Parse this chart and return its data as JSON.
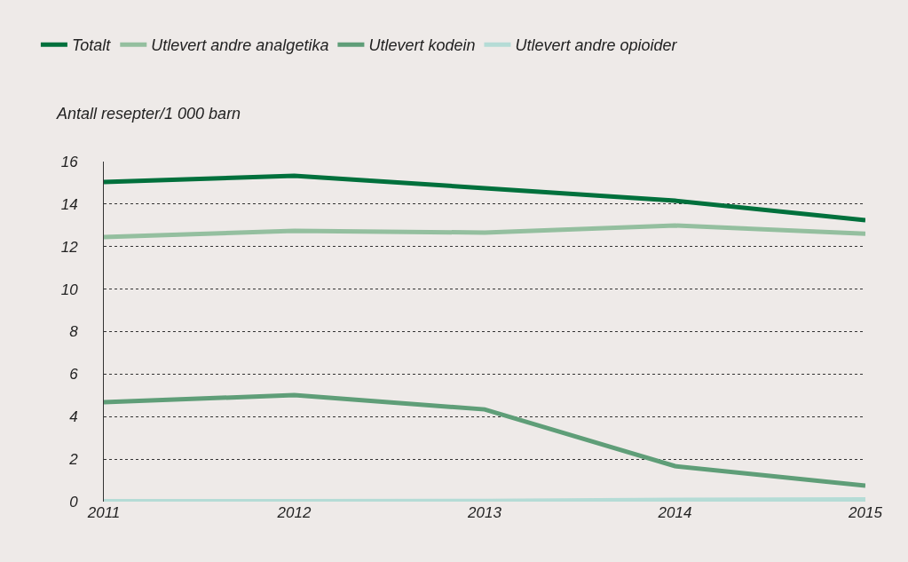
{
  "chart_data": {
    "type": "line",
    "ylabel": "Antall resepter/1 000 barn",
    "x": [
      2011,
      2012,
      2013,
      2014,
      2015
    ],
    "series": [
      {
        "name": "Totalt",
        "color": "#00703c",
        "values": [
          15.04,
          15.33,
          14.75,
          14.16,
          13.24
        ]
      },
      {
        "name": "Utlevert andre analgetika",
        "color": "#94bf9f",
        "values": [
          12.45,
          12.74,
          12.66,
          12.99,
          12.61
        ]
      },
      {
        "name": "Utlevert kodein",
        "color": "#5f9e78",
        "values": [
          4.68,
          5.01,
          4.34,
          1.67,
          0.75
        ]
      },
      {
        "name": "Utlevert andre opioider",
        "color": "#b5dcd6",
        "values": [
          0.02,
          0.02,
          0.03,
          0.08,
          0.1
        ]
      }
    ],
    "xlim": [
      2011,
      2015
    ],
    "xticks": [
      2011,
      2012,
      2013,
      2014,
      2015
    ],
    "ylim": [
      0,
      16
    ],
    "yticks": [
      0,
      2,
      4,
      6,
      8,
      10,
      12,
      14,
      16
    ],
    "grid": "y",
    "legend": "top left",
    "marker": "none",
    "line_style": "solid"
  }
}
